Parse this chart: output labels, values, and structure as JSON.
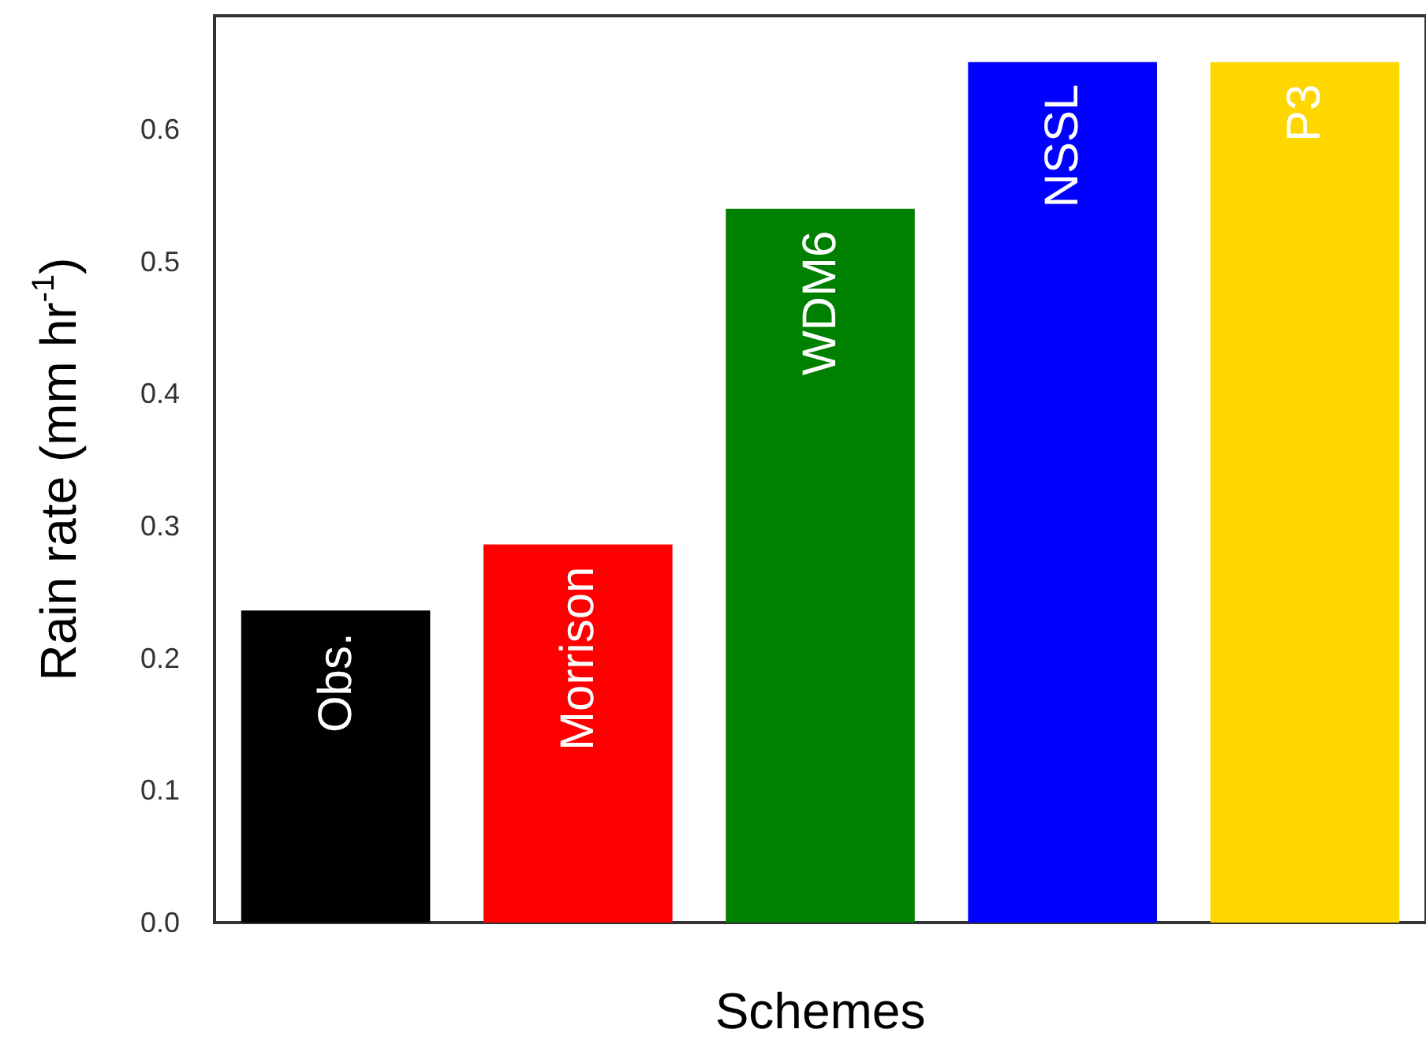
{
  "chart_data": {
    "type": "bar",
    "xlabel": "Schemes",
    "ylabel": "Rain rate (mm hr$^{-1}$)",
    "categories": [
      "Obs.",
      "Morrison",
      "WDM6",
      "NSSL",
      "P3"
    ],
    "values": [
      0.236,
      0.286,
      0.54,
      0.651,
      0.651
    ],
    "colors": [
      "#000000",
      "#ff0000",
      "#008000",
      "#0000ff",
      "#ffd700"
    ],
    "ylim": [
      0,
      0.686
    ],
    "yticks": [
      {
        "value": 0,
        "label": "0.0"
      },
      {
        "value": 0.1,
        "label": "0.1"
      },
      {
        "value": 0.2,
        "label": "0.2"
      },
      {
        "value": 0.3,
        "label": "0.3"
      },
      {
        "value": 0.4,
        "label": "0.4"
      },
      {
        "value": 0.5,
        "label": "0.5"
      },
      {
        "value": 0.6,
        "label": "0.6"
      }
    ],
    "tick_labels": "y",
    "grid": false
  }
}
